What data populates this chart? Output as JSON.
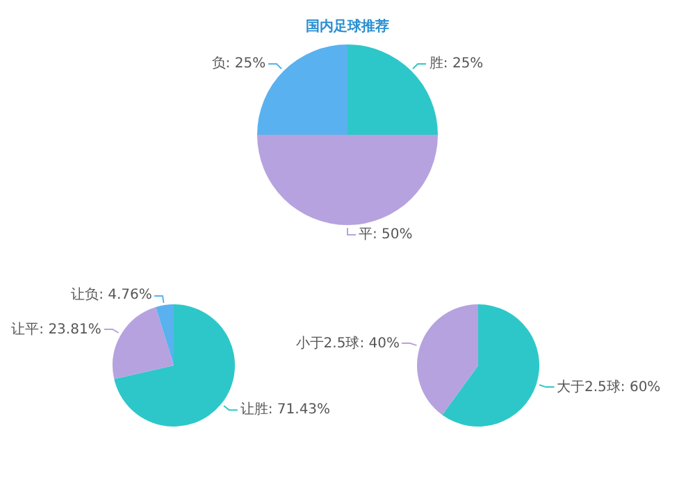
{
  "chart_data": [
    {
      "type": "pie",
      "title": "国内足球推荐",
      "categories": [
        "胜",
        "平",
        "负"
      ],
      "values": [
        25,
        50,
        25
      ],
      "colors": [
        "#2ec7c9",
        "#b6a2de",
        "#5ab1ef"
      ],
      "value_labels": [
        ": 25%",
        ": 50%",
        ": 25%"
      ]
    },
    {
      "type": "pie",
      "categories": [
        "让胜",
        "让平",
        "让负"
      ],
      "values": [
        71.43,
        23.81,
        4.76
      ],
      "colors": [
        "#2ec7c9",
        "#b6a2de",
        "#5ab1ef"
      ],
      "value_labels": [
        ": 71.43%",
        ": 23.81%",
        ": 4.76%"
      ]
    },
    {
      "type": "pie",
      "categories": [
        "大于2.5球",
        "小于2.5球"
      ],
      "values": [
        60,
        40
      ],
      "colors": [
        "#2ec7c9",
        "#b6a2de"
      ],
      "value_labels": [
        ": 60%",
        ": 40%"
      ]
    }
  ]
}
